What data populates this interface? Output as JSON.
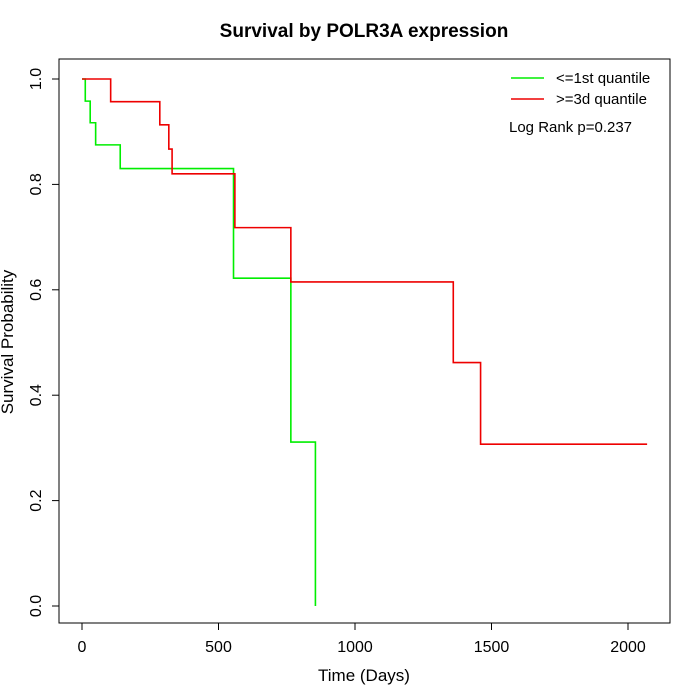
{
  "chart_data": {
    "type": "line",
    "title": "Survival by POLR3A expression",
    "xlabel": "Time (Days)",
    "ylabel": "Survival Probability",
    "xlim": [
      0,
      2070
    ],
    "ylim": [
      0,
      1
    ],
    "x_ticks": [
      0,
      500,
      1000,
      1500,
      2000
    ],
    "x_tick_labels": [
      "0",
      "500",
      "1000",
      "1500",
      "2000"
    ],
    "y_ticks": [
      0,
      0.2,
      0.4,
      0.6,
      0.8,
      1.0
    ],
    "y_tick_labels": [
      "0.0",
      "0.2",
      "0.4",
      "0.6",
      "0.8",
      "1.0"
    ],
    "grid": false,
    "legend_position": "top-right",
    "annotation": "Log Rank p=0.237",
    "series": [
      {
        "name": "<=1st quantile",
        "color": "#00ee00",
        "step": true,
        "points": [
          [
            0,
            1.0
          ],
          [
            12,
            0.958
          ],
          [
            30,
            0.917
          ],
          [
            50,
            0.875
          ],
          [
            140,
            0.83
          ],
          [
            555,
            0.622
          ],
          [
            765,
            0.311
          ],
          [
            855,
            0.0
          ]
        ]
      },
      {
        "name": ">=3d quantile",
        "color": "#ee0000",
        "step": true,
        "points": [
          [
            0,
            1.0
          ],
          [
            105,
            0.957
          ],
          [
            285,
            0.913
          ],
          [
            318,
            0.867
          ],
          [
            330,
            0.82
          ],
          [
            560,
            0.718
          ],
          [
            765,
            0.615
          ],
          [
            1360,
            0.462
          ],
          [
            1460,
            0.307
          ],
          [
            2070,
            0.307
          ]
        ]
      }
    ]
  }
}
